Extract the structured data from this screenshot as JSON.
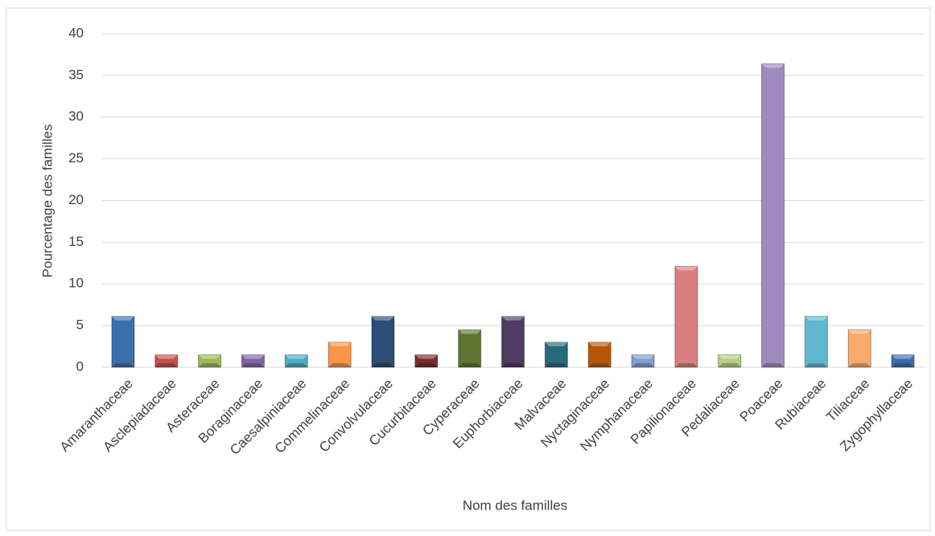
{
  "chart_data": {
    "type": "bar",
    "categories": [
      "Amaranthaceae",
      "Asclepiadaceae",
      "Asteraceae",
      "Boraginaceae",
      "Caesalpiniaceae",
      "Commelinaceae",
      "Convolvulaceae",
      "Cucurbitaceae",
      "Cyperaceae",
      "Euphorbiaceae",
      "Malvaceae",
      "Nyctaginaceae",
      "Nymphanaceae",
      "Papilionaceae",
      "Pedaliaceae",
      "Poaceae",
      "Rubiaceae",
      "Tiliaceae",
      "Zygophyllaceae"
    ],
    "values": [
      6.1,
      1.5,
      1.5,
      1.5,
      1.5,
      3,
      6.1,
      1.5,
      4.5,
      6.1,
      3,
      3,
      1.5,
      12.1,
      1.5,
      36.4,
      6.1,
      4.5,
      1.5
    ],
    "colors": [
      "#3a6fae",
      "#c0504d",
      "#9bbb59",
      "#8064a2",
      "#4bacc6",
      "#f79646",
      "#2c4d75",
      "#772c2a",
      "#5f7530",
      "#4d3b62",
      "#276a7c",
      "#b65708",
      "#7f9fcf",
      "#d9807e",
      "#b5cf85",
      "#9f8bbd",
      "#5fb8d0",
      "#f9ab6b",
      "#3a6fae"
    ],
    "x_label": "Nom des familles",
    "y_label": "Pourcentage des familles",
    "ylim": [
      0,
      40
    ],
    "yticks": [
      0,
      5,
      10,
      15,
      20,
      25,
      30,
      35,
      40
    ],
    "grid": true
  }
}
